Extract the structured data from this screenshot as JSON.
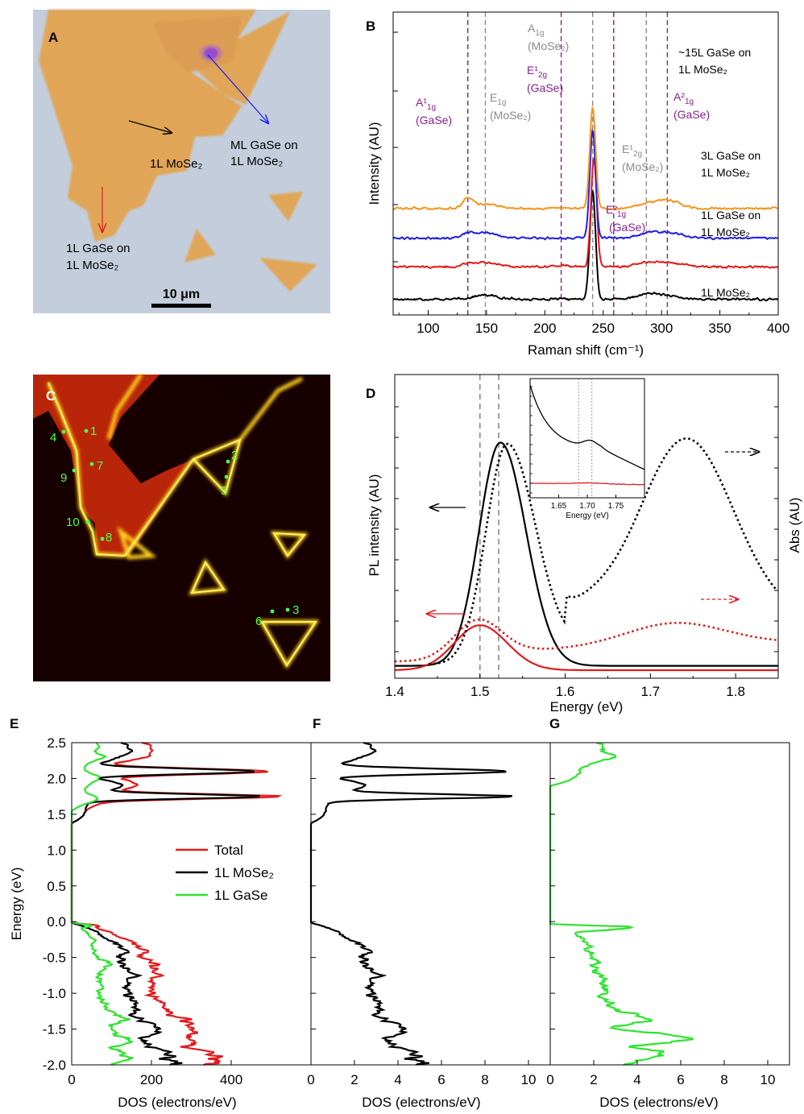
{
  "panels": {
    "A": {
      "letter": "A",
      "labels": {
        "mose2_1l": "1L MoSe₂",
        "ml_gase_line1": "ML GaSe on",
        "ml_gase_line2": "1L MoSe₂",
        "gase1l_line1": "1L GaSe on",
        "gase1l_line2": "1L MoSe₂"
      },
      "scale_bar": "10 μm",
      "colors": {
        "background": "#c3cddb",
        "flake": "#e0a556",
        "bilayer": "#d89c52",
        "core": "#8a3fbf"
      }
    },
    "B": {
      "letter": "B"
    },
    "C": {
      "letter": "C",
      "points": [
        {
          "label": "1"
        },
        {
          "label": "2"
        },
        {
          "label": "3"
        },
        {
          "label": "4"
        },
        {
          "label": "5"
        },
        {
          "label": "6"
        },
        {
          "label": "7"
        },
        {
          "label": "8"
        },
        {
          "label": "9"
        },
        {
          "label": "10"
        }
      ],
      "colors": {
        "background": "#160000",
        "body": "#b82508",
        "edge": "#fff23a",
        "points": "#4dff4d"
      }
    },
    "D": {
      "letter": "D"
    },
    "E": {
      "letter": "E"
    },
    "F": {
      "letter": "F"
    },
    "G": {
      "letter": "G"
    }
  },
  "chart_data": [
    {
      "panel": "B",
      "type": "line",
      "xlabel": "Raman shift (cm⁻¹)",
      "ylabel": "Intensity (AU)",
      "xlim": [
        70,
        400
      ],
      "xticks": [
        100,
        150,
        200,
        250,
        300,
        350,
        400
      ],
      "series": [
        {
          "name": "1L MoSe₂",
          "color": "#000000",
          "offset": 0.5,
          "baseline": 0.35,
          "peak": 6.0,
          "noise": 0.08,
          "peaks": [
            [
              149,
              0.22,
              10
            ],
            [
              241,
              6.0,
              2.4
            ],
            [
              287,
              0.18,
              9
            ],
            [
              300,
              0.2,
              12
            ]
          ]
        },
        {
          "name": "1L GaSe on 1L MoSe₂",
          "color": "#e31a1c",
          "offset": 2.25,
          "baseline": 0.35,
          "noise": 0.08,
          "peaks": [
            [
              134,
              0.12,
              5
            ],
            [
              149,
              0.25,
              10
            ],
            [
              214,
              0.06,
              6
            ],
            [
              242,
              6.0,
              2.4
            ],
            [
              287,
              0.18,
              9
            ],
            [
              305,
              0.22,
              12
            ]
          ]
        },
        {
          "name": "3L GaSe on 1L MoSe₂",
          "color": "#1f1fe8",
          "offset": 3.85,
          "baseline": 0.3,
          "noise": 0.08,
          "peaks": [
            [
              134,
              0.2,
              5
            ],
            [
              149,
              0.3,
              10
            ],
            [
              241,
              6.0,
              2.4
            ],
            [
              287,
              0.2,
              9
            ],
            [
              305,
              0.3,
              12
            ]
          ]
        },
        {
          "name": "~15L GaSe on 1L MoSe₂",
          "color": "#f7941d",
          "offset": 5.45,
          "baseline": 0.3,
          "noise": 0.08,
          "peaks": [
            [
              134,
              0.5,
              4
            ],
            [
              149,
              0.25,
              10
            ],
            [
              214,
              0.05,
              6
            ],
            [
              241,
              5.6,
              2.4
            ],
            [
              287,
              0.2,
              8
            ],
            [
              305,
              0.45,
              10
            ]
          ]
        }
      ],
      "purple_lines": [
        134,
        214,
        259,
        305
      ],
      "gray_lines": [
        149,
        241,
        287
      ],
      "annotations": [
        {
          "text": "A",
          "sub": "1g",
          "tail": "(MoSe₂)",
          "color": "#8a8a8a"
        },
        {
          "text": "E",
          "sub": "1g",
          "tail": "(MoSe₂)",
          "color": "#8a8a8a"
        },
        {
          "text": "A¹",
          "sub": "1g",
          "tail": "(GaSe)",
          "color": "#8a1f8c"
        },
        {
          "text": "E¹",
          "sub": "2g",
          "tail": "(GaSe)",
          "color": "#8a1f8c"
        },
        {
          "text": "A²",
          "sub": "1g",
          "tail": "(GaSe)",
          "color": "#8a1f8c"
        },
        {
          "text": "E¹",
          "sub": "2g",
          "tail": "(MoSe₂)",
          "color": "#8a8a8a"
        },
        {
          "text": "E²",
          "sub": "1g",
          "tail": "(GaSe)",
          "color": "#8a1f8c"
        }
      ],
      "sample_labels": [
        {
          "line1": "~15L GaSe on",
          "line2": "1L MoSe₂"
        },
        {
          "line1": "3L GaSe on",
          "line2": "1L MoSe₂"
        },
        {
          "line1": "1L GaSe on",
          "line2": "1L MoSe₂"
        },
        {
          "line1": "1L MoSe₂",
          "line2": ""
        }
      ]
    },
    {
      "panel": "D",
      "type": "line",
      "xlabel": "Energy (eV)",
      "ylabel": "PL intensity (AU)",
      "ylabel_right": "Abs (AU)",
      "xlim": [
        1.4,
        1.85
      ],
      "xticks": [
        1.4,
        1.5,
        1.6,
        1.7,
        1.8
      ],
      "vlines": [
        1.5,
        1.522
      ],
      "series": [
        {
          "name": "PL 1L MoSe₂",
          "color": "#000000",
          "style": "solid",
          "center": 1.524,
          "amp": 7.7,
          "sl": 0.025,
          "sr": 0.03
        },
        {
          "name": "PL heterostructure",
          "color": "#e31a1c",
          "style": "solid",
          "center": 1.5,
          "amp": 1.55,
          "sl": 0.03,
          "sr": 0.032
        },
        {
          "name": "Abs 1L MoSe₂",
          "color": "#000000",
          "style": "dotted"
        },
        {
          "name": "Abs heterostructure",
          "color": "#e31a1c",
          "style": "dotted"
        }
      ],
      "inset": {
        "xlabel": "Energy (eV)",
        "xlim": [
          1.6,
          1.8
        ],
        "xticks": [
          1.65,
          1.7,
          1.75
        ],
        "vlines": [
          1.685,
          1.708
        ]
      }
    },
    {
      "panel": "E",
      "type": "line",
      "xlabel": "DOS (electrons/eV)",
      "ylabel": "Energy (eV)",
      "xlim": [
        0,
        600
      ],
      "ylim": [
        -2.0,
        2.5
      ],
      "xticks": [
        0,
        200,
        400
      ],
      "yticks": [
        -2.0,
        -1.5,
        -1.0,
        -0.5,
        0.0,
        0.5,
        1.0,
        1.5,
        2.0,
        2.5
      ],
      "legend": {
        "placement": "center"
      },
      "series": [
        {
          "name": "Total",
          "color": "#e31a1c"
        },
        {
          "name": "1L MoSe₂",
          "color": "#000000"
        },
        {
          "name": "1L GaSe",
          "color": "#2fe32f"
        }
      ]
    },
    {
      "panel": "F",
      "type": "line",
      "xlabel": "DOS (electrons/eV)",
      "xlim": [
        0,
        11
      ],
      "ylim": [
        -2.0,
        2.5
      ],
      "xticks": [
        0,
        2,
        4,
        6,
        8,
        10
      ],
      "series": [
        {
          "name": "",
          "color": "#000000"
        }
      ]
    },
    {
      "panel": "G",
      "type": "line",
      "xlabel": "DOS (electrons/eV)",
      "xlim": [
        0,
        11
      ],
      "ylim": [
        -2.0,
        2.5
      ],
      "xticks": [
        0,
        2,
        4,
        6,
        8,
        10
      ],
      "series": [
        {
          "name": "",
          "color": "#2fe32f"
        }
      ]
    }
  ]
}
